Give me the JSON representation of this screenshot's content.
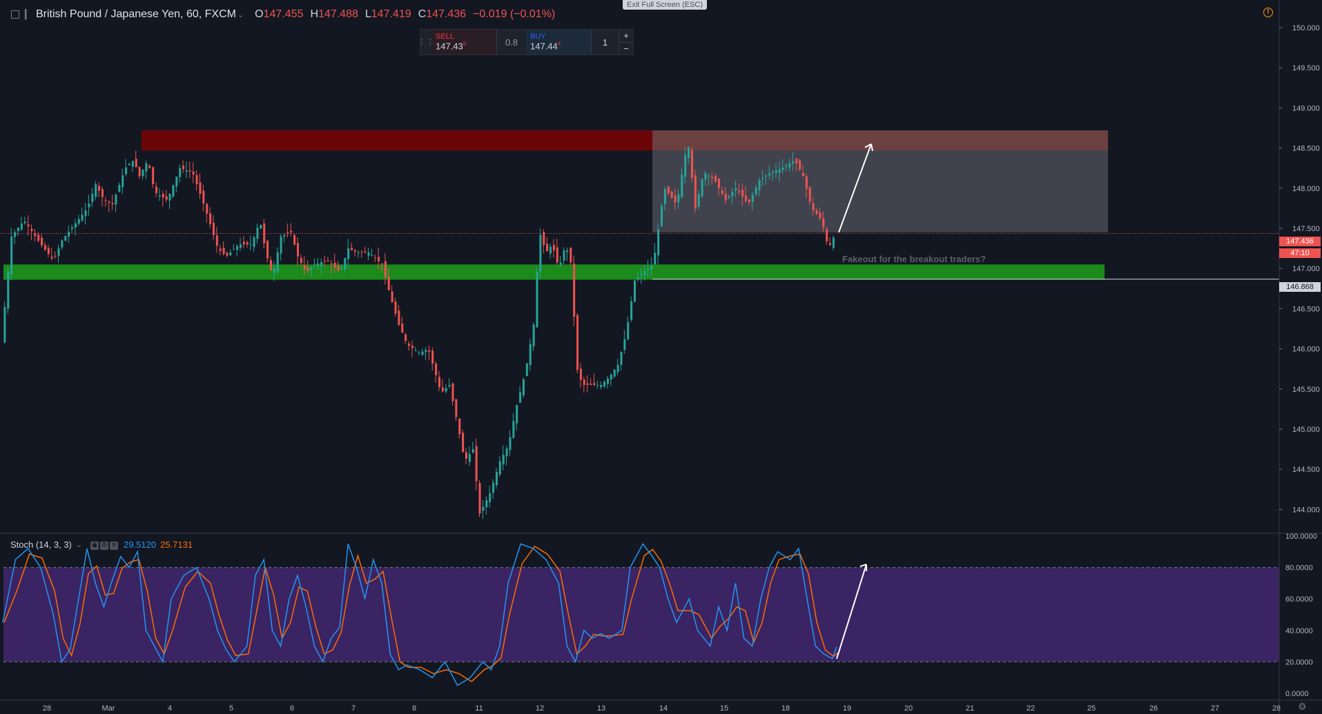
{
  "header": {
    "symbol": "British Pound / Japanese Yen, 60, FXCM",
    "open_label": "O",
    "open": "147.455",
    "high_label": "H",
    "high": "147.488",
    "low_label": "L",
    "low": "147.419",
    "close_label": "C",
    "close": "147.436",
    "change": "−0.019 (−0.01%)"
  },
  "exit_fullscreen": "Exit Full Screen (ESC)",
  "trade_panel": {
    "sell_label": "SELL",
    "sell_price": "147.43",
    "sell_sup": "6",
    "spread": "0.8",
    "buy_label": "BUY",
    "buy_price": "147.44",
    "buy_sup": "4",
    "quantity": "1",
    "plus": "+",
    "minus": "−"
  },
  "annotation_text": "Fakeout for the breakout traders?",
  "stoch": {
    "label": "Stoch (14, 3, 3)",
    "k": "29.5120",
    "d": "25.7131",
    "k_color": "#2196f3",
    "d_color": "#ff6d00"
  },
  "price_labels": {
    "current": "147.436",
    "countdown": "47:10",
    "level": "146.868"
  },
  "colors": {
    "background": "#131722",
    "up_candle": "#26a69a",
    "down_candle": "#ef5350",
    "resistance_zone": "#8b0000",
    "support_zone": "#1b8a1b",
    "range_box": "#787b86",
    "stoch_band": "#4a2a7a"
  },
  "chart_data": {
    "type": "candlestick",
    "ylim": [
      143.9,
      150.15
    ],
    "y_ticks": [
      "150.000",
      "149.500",
      "149.000",
      "148.500",
      "148.000",
      "147.500",
      "147.000",
      "146.500",
      "146.000",
      "145.500",
      "145.000",
      "144.500",
      "144.000"
    ],
    "x_ticks": [
      "28",
      "Mar",
      "4",
      "5",
      "6",
      "7",
      "8",
      "11",
      "12",
      "13",
      "14",
      "15",
      "18",
      "19",
      "20",
      "21",
      "22",
      "25",
      "26",
      "27",
      "28"
    ],
    "stoch_ticks": [
      "100.0000",
      "80.0000",
      "60.0000",
      "40.0000",
      "20.0000",
      "0.0000"
    ],
    "path": [
      [
        0,
        146.3
      ],
      [
        10,
        147.4
      ],
      [
        25,
        147.6
      ],
      [
        45,
        147.3
      ],
      [
        60,
        147.1
      ],
      [
        70,
        147.35
      ],
      [
        85,
        147.55
      ],
      [
        100,
        147.75
      ],
      [
        110,
        148.05
      ],
      [
        120,
        147.85
      ],
      [
        130,
        147.8
      ],
      [
        145,
        148.25
      ],
      [
        155,
        148.35
      ],
      [
        162,
        148.15
      ],
      [
        172,
        148.35
      ],
      [
        180,
        147.95
      ],
      [
        195,
        147.85
      ],
      [
        210,
        148.25
      ],
      [
        225,
        148.2
      ],
      [
        240,
        147.75
      ],
      [
        255,
        147.25
      ],
      [
        265,
        147.15
      ],
      [
        280,
        147.3
      ],
      [
        295,
        147.3
      ],
      [
        305,
        147.6
      ],
      [
        312,
        147.2
      ],
      [
        320,
        146.9
      ],
      [
        330,
        147.4
      ],
      [
        342,
        147.45
      ],
      [
        350,
        147.15
      ],
      [
        360,
        146.95
      ],
      [
        370,
        147.05
      ],
      [
        385,
        147.1
      ],
      [
        400,
        146.95
      ],
      [
        410,
        147.25
      ],
      [
        420,
        147.2
      ],
      [
        435,
        147.2
      ],
      [
        450,
        147.05
      ],
      [
        460,
        146.65
      ],
      [
        470,
        146.3
      ],
      [
        480,
        146.05
      ],
      [
        495,
        145.95
      ],
      [
        505,
        146.0
      ],
      [
        520,
        145.45
      ],
      [
        530,
        145.55
      ],
      [
        540,
        145.05
      ],
      [
        548,
        144.6
      ],
      [
        558,
        144.75
      ],
      [
        566,
        143.95
      ],
      [
        578,
        144.2
      ],
      [
        590,
        144.6
      ],
      [
        600,
        144.8
      ],
      [
        610,
        145.3
      ],
      [
        620,
        145.7
      ],
      [
        630,
        146.3
      ],
      [
        637,
        147.45
      ],
      [
        645,
        147.2
      ],
      [
        652,
        147.3
      ],
      [
        660,
        147.0
      ],
      [
        668,
        147.3
      ],
      [
        676,
        147.0
      ],
      [
        680,
        145.8
      ],
      [
        688,
        145.55
      ],
      [
        698,
        145.55
      ],
      [
        710,
        145.55
      ],
      [
        720,
        145.65
      ],
      [
        730,
        145.8
      ],
      [
        740,
        146.2
      ],
      [
        750,
        146.85
      ],
      [
        760,
        146.95
      ],
      [
        772,
        147.05
      ],
      [
        785,
        148.0
      ],
      [
        800,
        147.8
      ],
      [
        813,
        148.6
      ],
      [
        822,
        147.75
      ],
      [
        832,
        148.2
      ],
      [
        845,
        148.1
      ],
      [
        858,
        147.85
      ],
      [
        870,
        148.0
      ],
      [
        885,
        147.8
      ],
      [
        898,
        148.1
      ],
      [
        912,
        148.2
      ],
      [
        925,
        148.25
      ],
      [
        940,
        148.35
      ],
      [
        950,
        148.15
      ],
      [
        960,
        147.75
      ],
      [
        972,
        147.6
      ],
      [
        980,
        147.25
      ],
      [
        988,
        147.43
      ]
    ],
    "stoch_k_path": [
      [
        0,
        45
      ],
      [
        15,
        85
      ],
      [
        30,
        92
      ],
      [
        45,
        80
      ],
      [
        60,
        50
      ],
      [
        70,
        20
      ],
      [
        80,
        28
      ],
      [
        90,
        60
      ],
      [
        100,
        92
      ],
      [
        110,
        70
      ],
      [
        120,
        55
      ],
      [
        130,
        72
      ],
      [
        140,
        87
      ],
      [
        150,
        80
      ],
      [
        160,
        90
      ],
      [
        170,
        40
      ],
      [
        180,
        30
      ],
      [
        190,
        20
      ],
      [
        200,
        60
      ],
      [
        215,
        75
      ],
      [
        230,
        80
      ],
      [
        245,
        60
      ],
      [
        255,
        40
      ],
      [
        265,
        28
      ],
      [
        275,
        20
      ],
      [
        290,
        30
      ],
      [
        300,
        75
      ],
      [
        310,
        85
      ],
      [
        320,
        40
      ],
      [
        330,
        30
      ],
      [
        340,
        60
      ],
      [
        350,
        75
      ],
      [
        360,
        55
      ],
      [
        370,
        30
      ],
      [
        380,
        20
      ],
      [
        390,
        35
      ],
      [
        400,
        42
      ],
      [
        410,
        95
      ],
      [
        420,
        80
      ],
      [
        430,
        60
      ],
      [
        440,
        85
      ],
      [
        450,
        70
      ],
      [
        460,
        25
      ],
      [
        470,
        15
      ],
      [
        480,
        18
      ],
      [
        495,
        15
      ],
      [
        510,
        10
      ],
      [
        525,
        20
      ],
      [
        540,
        5
      ],
      [
        555,
        10
      ],
      [
        570,
        20
      ],
      [
        580,
        15
      ],
      [
        590,
        30
      ],
      [
        600,
        70
      ],
      [
        615,
        95
      ],
      [
        630,
        92
      ],
      [
        645,
        85
      ],
      [
        660,
        70
      ],
      [
        670,
        30
      ],
      [
        680,
        20
      ],
      [
        690,
        40
      ],
      [
        700,
        35
      ],
      [
        710,
        38
      ],
      [
        720,
        35
      ],
      [
        735,
        40
      ],
      [
        745,
        80
      ],
      [
        760,
        95
      ],
      [
        770,
        88
      ],
      [
        780,
        80
      ],
      [
        790,
        60
      ],
      [
        800,
        45
      ],
      [
        815,
        60
      ],
      [
        825,
        40
      ],
      [
        840,
        30
      ],
      [
        850,
        55
      ],
      [
        860,
        40
      ],
      [
        870,
        70
      ],
      [
        880,
        35
      ],
      [
        890,
        30
      ],
      [
        900,
        60
      ],
      [
        910,
        80
      ],
      [
        920,
        90
      ],
      [
        935,
        85
      ],
      [
        945,
        92
      ],
      [
        955,
        60
      ],
      [
        965,
        30
      ],
      [
        975,
        25
      ],
      [
        985,
        22
      ],
      [
        990,
        29.5
      ]
    ]
  }
}
